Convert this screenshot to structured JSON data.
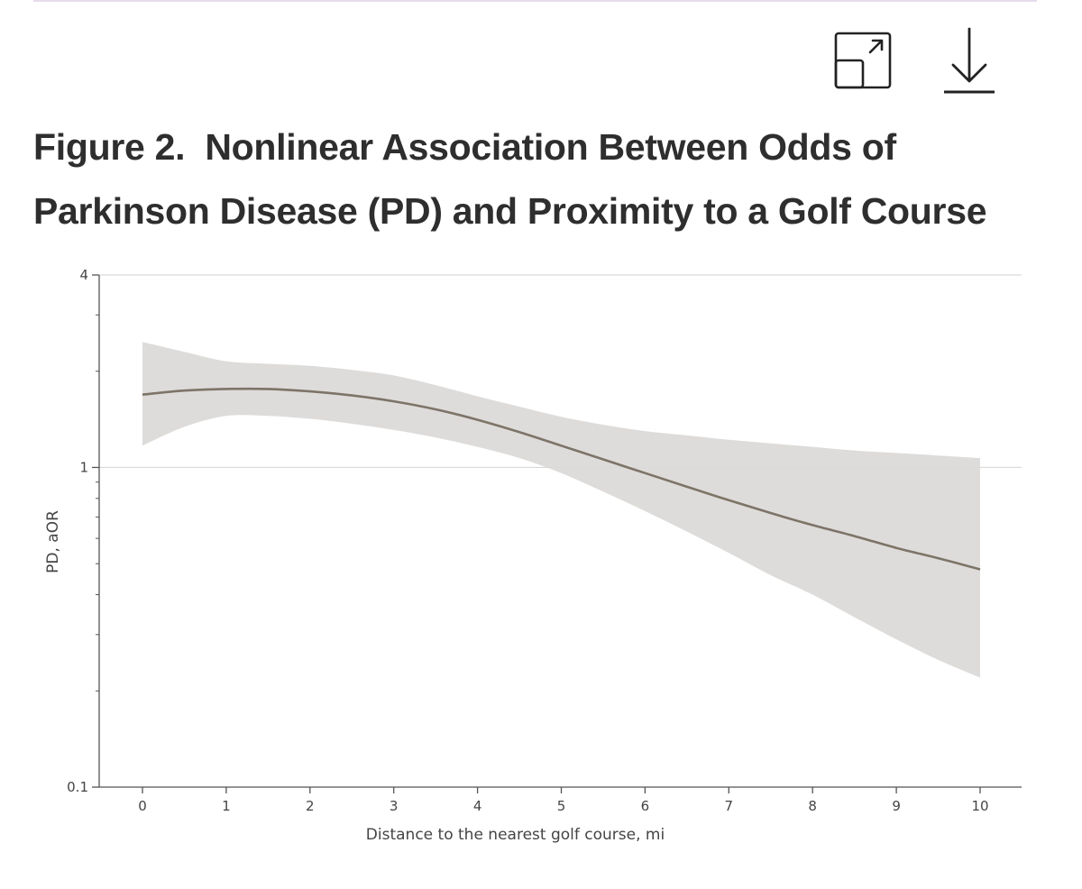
{
  "toolbar": {
    "expand_icon": "expand-icon",
    "download_icon": "download-icon"
  },
  "figure": {
    "label": "Figure 2.",
    "title": "Nonlinear Association Between Odds of Parkinson Disease (PD) and Proximity to a Golf Course"
  },
  "chart_data": {
    "type": "line",
    "xlabel": "Distance to the nearest golf course, mi",
    "ylabel": "PD, aOR",
    "xlim": [
      0,
      10
    ],
    "ylim": [
      0.1,
      4
    ],
    "yscale": "log",
    "x_ticks": [
      0,
      1,
      2,
      3,
      4,
      5,
      6,
      7,
      8,
      9,
      10
    ],
    "x_tick_labels": [
      "0",
      "1",
      "2",
      "3",
      "4",
      "5",
      "6",
      "7",
      "8",
      "9",
      "10"
    ],
    "y_ticks": [
      0.1,
      1,
      4
    ],
    "y_tick_labels": [
      "0.1",
      "1",
      "4"
    ],
    "reference_lines_y": [
      1,
      4
    ],
    "series": [
      {
        "type": "line",
        "x": [
          0,
          0.5,
          1,
          1.5,
          2,
          2.5,
          3,
          3.5,
          4,
          4.5,
          5,
          5.5,
          6,
          6.5,
          7,
          7.5,
          8,
          8.5,
          9,
          9.5,
          10
        ],
        "y": [
          1.69,
          1.74,
          1.76,
          1.76,
          1.73,
          1.68,
          1.61,
          1.52,
          1.41,
          1.29,
          1.17,
          1.06,
          0.96,
          0.87,
          0.79,
          0.72,
          0.66,
          0.61,
          0.56,
          0.52,
          0.48
        ],
        "lower": [
          1.17,
          1.34,
          1.45,
          1.45,
          1.42,
          1.37,
          1.31,
          1.24,
          1.16,
          1.07,
          0.96,
          0.84,
          0.73,
          0.63,
          0.54,
          0.46,
          0.4,
          0.34,
          0.29,
          0.25,
          0.22
        ],
        "upper": [
          2.47,
          2.3,
          2.15,
          2.11,
          2.08,
          2.02,
          1.94,
          1.81,
          1.67,
          1.55,
          1.44,
          1.36,
          1.3,
          1.26,
          1.22,
          1.19,
          1.16,
          1.13,
          1.11,
          1.09,
          1.07
        ]
      }
    ],
    "colors": {
      "line": "#7d7468",
      "band": "#dedcda",
      "axis": "#555555",
      "gridline": "#d9d9d9"
    },
    "grid": false
  }
}
